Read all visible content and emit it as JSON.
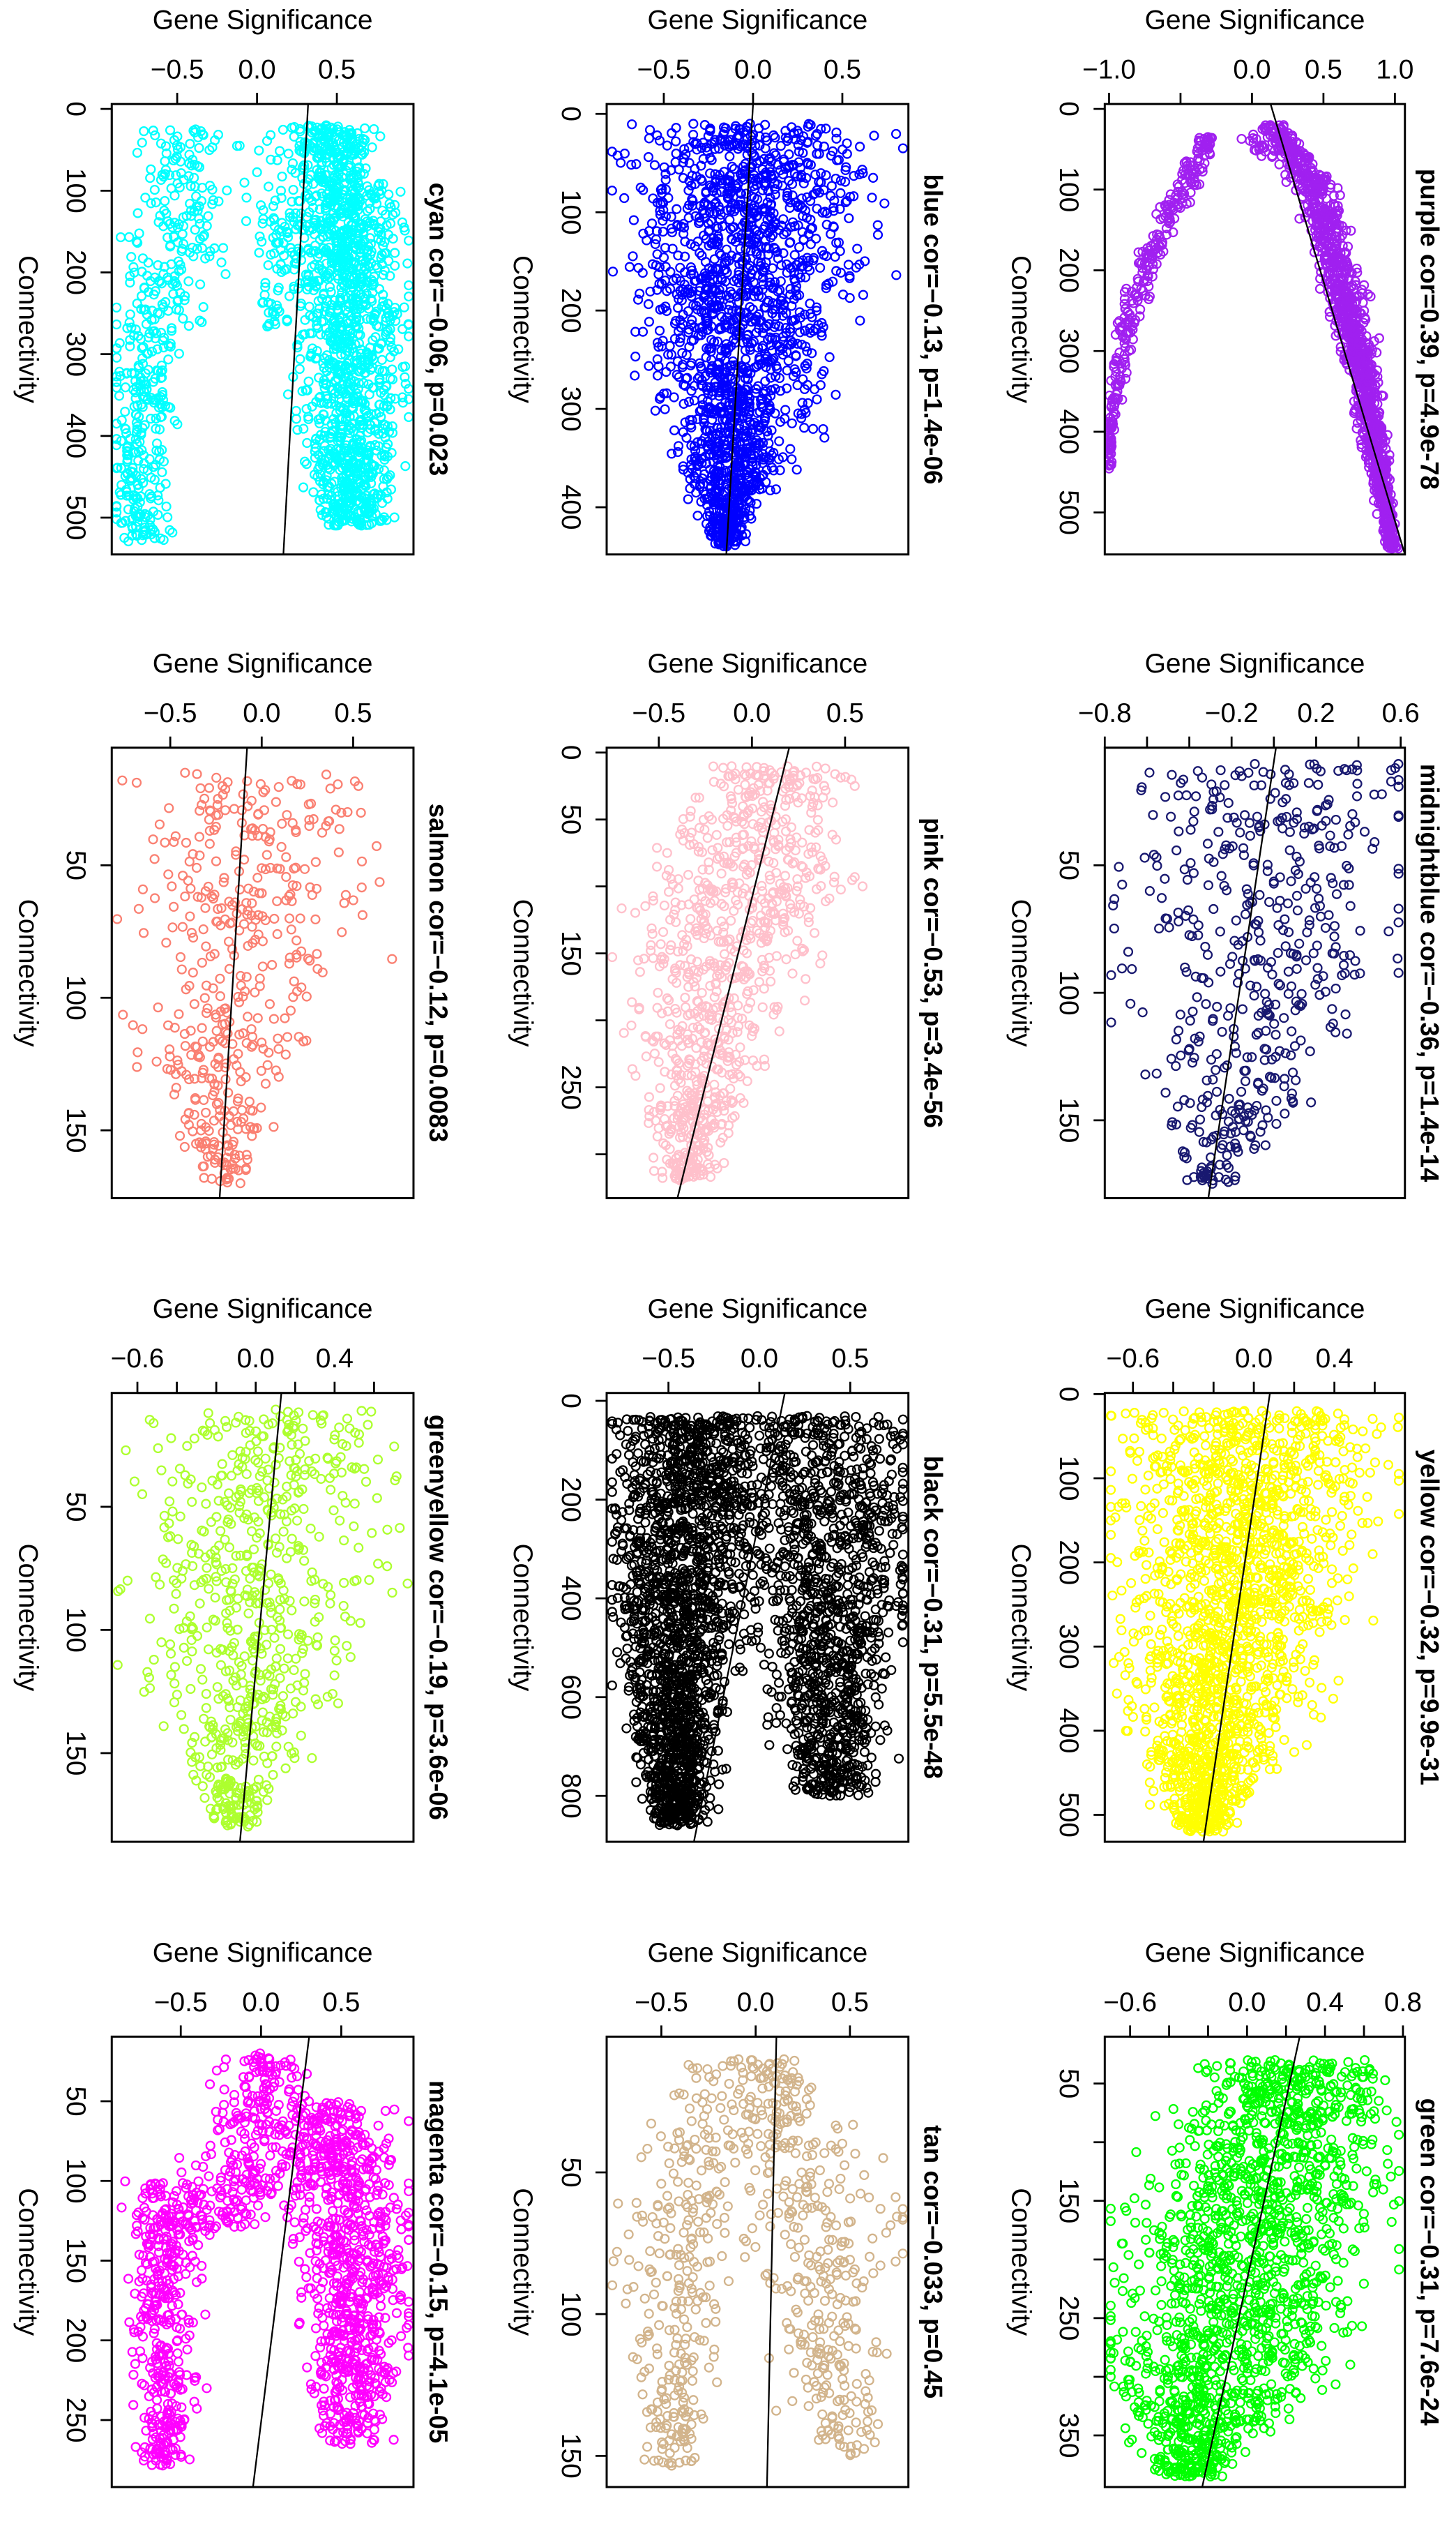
{
  "chart_data": [
    {
      "type": "scatter",
      "module": "cyan",
      "color": "#00FFFF",
      "title": "cyan cor=−0.06, p=0.023",
      "cor": -0.06,
      "p": "0.023",
      "xlabel": "Gene Significance",
      "ylabel": "Connectivity",
      "xlim": [
        -0.91,
        0.98
      ],
      "ylim": [
        -6,
        545
      ],
      "xticks": [
        -0.5,
        0.0,
        0.5
      ],
      "xticklabels": [
        "−0.5",
        "0.0",
        "0.5"
      ],
      "yticks": [
        0,
        100,
        200,
        300,
        400,
        500
      ],
      "yticklabels": [
        "0",
        "100",
        "200",
        "300",
        "400",
        "500"
      ],
      "fit_line": [
        [
          0.32,
          -6
        ],
        [
          0.165,
          545
        ]
      ],
      "clusters": [
        {
          "n": 450,
          "nodes": [
            [
              25,
              -0.45,
              0.12
            ],
            [
              150,
              -0.5,
              0.15
            ],
            [
              300,
              -0.7,
              0.12
            ],
            [
              530,
              -0.72,
              0.08
            ]
          ]
        },
        {
          "n": 80,
          "nodes": [
            [
              30,
              0.05,
              0.12
            ],
            [
              270,
              0.12,
              0.05
            ]
          ]
        },
        {
          "n": 1400,
          "nodes": [
            [
              20,
              0.45,
              0.12
            ],
            [
              150,
              0.55,
              0.17
            ],
            [
              350,
              0.6,
              0.16
            ],
            [
              510,
              0.6,
              0.11
            ]
          ]
        }
      ]
    },
    {
      "type": "scatter",
      "module": "blue",
      "color": "#0000FF",
      "title": "blue cor=−0.13, p=1.4e−06",
      "cor": -0.13,
      "p": "1.4e-06",
      "xlabel": "Gene Significance",
      "ylabel": "Connectivity",
      "xlim": [
        -0.82,
        0.87
      ],
      "ylim": [
        -10,
        448
      ],
      "xticks": [
        -0.5,
        0.0,
        0.5
      ],
      "xticklabels": [
        "−0.5",
        "0.0",
        "0.5"
      ],
      "yticks": [
        0,
        100,
        200,
        300,
        400
      ],
      "yticklabels": [
        "0",
        "100",
        "200",
        "300",
        "400"
      ],
      "fit_line": [
        [
          0.0,
          -10
        ],
        [
          -0.15,
          448
        ]
      ],
      "clusters": [
        {
          "n": 1800,
          "nodes": [
            [
              10,
              0.0,
              0.33
            ],
            [
              200,
              -0.05,
              0.27
            ],
            [
              350,
              -0.12,
              0.15
            ],
            [
              440,
              -0.15,
              0.04
            ]
          ]
        }
      ]
    },
    {
      "type": "scatter",
      "module": "purple",
      "color": "#A020F0",
      "title": "purple cor=0.39, p=4.9e−78",
      "cor": 0.39,
      "p": "4.9e-78",
      "xlabel": "Gene Significance",
      "ylabel": "Connectivity",
      "xlim": [
        -1.03,
        1.07
      ],
      "ylim": [
        -6,
        552
      ],
      "xticks": [
        -1.0,
        -0.5,
        0.0,
        0.5,
        1.0
      ],
      "xticklabels": [
        "−1.0",
        "",
        "0.0",
        "0.5",
        "1.0"
      ],
      "yticks": [
        0,
        100,
        200,
        300,
        400,
        500
      ],
      "yticklabels": [
        "0",
        "100",
        "200",
        "300",
        "400",
        "500"
      ],
      "fit_line": [
        [
          0.13,
          -6
        ],
        [
          1.07,
          552
        ]
      ],
      "clusters": [
        {
          "n": 300,
          "nodes": [
            [
              30,
              -0.3,
              0.04
            ],
            [
              100,
              -0.5,
              0.05
            ],
            [
              250,
              -0.85,
              0.04
            ],
            [
              400,
              -1.0,
              0.02
            ],
            [
              450,
              -1.0,
              0.01
            ]
          ]
        },
        {
          "n": 20,
          "nodes": [
            [
              30,
              0.0,
              0.06
            ],
            [
              60,
              0.1,
              0.04
            ]
          ]
        },
        {
          "n": 1200,
          "nodes": [
            [
              20,
              0.15,
              0.04
            ],
            [
              100,
              0.45,
              0.07
            ],
            [
              300,
              0.75,
              0.06
            ],
            [
              545,
              0.98,
              0.02
            ]
          ]
        }
      ]
    },
    {
      "type": "scatter",
      "module": "salmon",
      "color": "#FA8072",
      "title": "salmon cor=−0.12, p=0.0083",
      "cor": -0.12,
      "p": "0.0083",
      "xlabel": "Gene Significance",
      "ylabel": "Connectivity",
      "xlim": [
        -0.82,
        0.83
      ],
      "ylim": [
        5.6,
        175.6
      ],
      "xticks": [
        -0.5,
        0.0,
        0.5
      ],
      "xticklabels": [
        "−0.5",
        "0.0",
        "0.5"
      ],
      "yticks": [
        50,
        100,
        150
      ],
      "yticklabels": [
        "50",
        "100",
        "150"
      ],
      "fit_line": [
        [
          -0.08,
          5.6
        ],
        [
          -0.23,
          175.6
        ]
      ],
      "clusters": [
        {
          "n": 450,
          "nodes": [
            [
              15,
              -0.05,
              0.3
            ],
            [
              80,
              -0.05,
              0.3
            ],
            [
              120,
              -0.2,
              0.2
            ],
            [
              170,
              -0.2,
              0.06
            ]
          ]
        }
      ]
    },
    {
      "type": "scatter",
      "module": "pink",
      "color": "#FFC0CB",
      "title": "pink cor=−0.53, p=3.4e−56",
      "cor": -0.53,
      "p": "3.4e-56",
      "xlabel": "Gene Significance",
      "ylabel": "Connectivity",
      "xlim": [
        -0.78,
        0.84
      ],
      "ylim": [
        -3.6,
        332.7
      ],
      "xticks": [
        -0.5,
        0.0,
        0.5
      ],
      "xticklabels": [
        "−0.5",
        "0.0",
        "0.5"
      ],
      "yticks": [
        0,
        50,
        100,
        150,
        200,
        250,
        300
      ],
      "yticklabels": [
        "0",
        "50",
        "",
        "150",
        "",
        "250",
        ""
      ],
      "fit_line": [
        [
          0.2,
          -3.6
        ],
        [
          -0.4,
          332.7
        ]
      ],
      "clusters": [
        {
          "n": 900,
          "nodes": [
            [
              10,
              0.1,
              0.2
            ],
            [
              100,
              0.0,
              0.28
            ],
            [
              200,
              -0.25,
              0.2
            ],
            [
              320,
              -0.35,
              0.07
            ]
          ]
        }
      ]
    },
    {
      "type": "scatter",
      "module": "midnightblue",
      "color": "#191970",
      "title": "midnightblue cor=−0.36, p=1.4e−14",
      "cor": -0.36,
      "p": "1.4e-14",
      "xlabel": "Gene Significance",
      "ylabel": "Connectivity",
      "xlim": [
        -0.8,
        0.62
      ],
      "ylim": [
        3.9,
        180.5
      ],
      "xticks": [
        -0.8,
        -0.6,
        -0.4,
        -0.2,
        0.0,
        0.2,
        0.4,
        0.6
      ],
      "xticklabels": [
        "−0.8",
        "",
        "",
        "−0.2",
        "",
        "0.2",
        "",
        "0.6"
      ],
      "yticks": [
        50,
        100,
        150
      ],
      "yticklabels": [
        "50",
        "100",
        "150"
      ],
      "fit_line": [
        [
          0.01,
          3.9
        ],
        [
          -0.31,
          180.5
        ]
      ],
      "clusters": [
        {
          "n": 500,
          "nodes": [
            [
              10,
              0.0,
              0.33
            ],
            [
              80,
              0.0,
              0.33
            ],
            [
              150,
              -0.25,
              0.15
            ],
            [
              175,
              -0.3,
              0.05
            ]
          ]
        }
      ]
    },
    {
      "type": "scatter",
      "module": "greenyellow",
      "color": "#ADFF2F",
      "title": "greenyellow cor=−0.19, p=3.6e−06",
      "cor": -0.19,
      "p": "3.6e-06",
      "xlabel": "Gene Significance",
      "ylabel": "Connectivity",
      "xlim": [
        -0.73,
        0.8
      ],
      "ylim": [
        3.8,
        186
      ],
      "xticks": [
        -0.6,
        -0.4,
        -0.2,
        0.0,
        0.2,
        0.4,
        0.6
      ],
      "xticklabels": [
        "−0.6",
        "",
        "",
        "0.0",
        "",
        "0.4",
        ""
      ],
      "yticks": [
        50,
        100,
        150
      ],
      "yticklabels": [
        "50",
        "100",
        "150"
      ],
      "fit_line": [
        [
          0.13,
          3.8
        ],
        [
          -0.08,
          186
        ]
      ],
      "clusters": [
        {
          "n": 700,
          "nodes": [
            [
              10,
              0.15,
              0.33
            ],
            [
              80,
              0.0,
              0.3
            ],
            [
              140,
              -0.05,
              0.2
            ],
            [
              180,
              -0.1,
              0.05
            ]
          ]
        }
      ]
    },
    {
      "type": "scatter",
      "module": "black",
      "color": "#000000",
      "title": "black cor=−0.31, p=5.5e−48",
      "cor": -0.31,
      "p": "5.5e-48",
      "xlabel": "Gene Significance",
      "ylabel": "Connectivity",
      "xlim": [
        -0.84,
        0.82
      ],
      "ylim": [
        -16,
        893
      ],
      "xticks": [
        -0.5,
        0.0,
        0.5
      ],
      "xticklabels": [
        "−0.5",
        "0.0",
        "0.5"
      ],
      "yticks": [
        0,
        200,
        400,
        600,
        800
      ],
      "yticklabels": [
        "0",
        "200",
        "400",
        "600",
        "800"
      ],
      "fit_line": [
        [
          0.14,
          -16
        ],
        [
          -0.36,
          893
        ]
      ],
      "clusters": [
        {
          "n": 1800,
          "nodes": [
            [
              30,
              -0.35,
              0.2
            ],
            [
              400,
              -0.45,
              0.18
            ],
            [
              860,
              -0.45,
              0.07
            ]
          ]
        },
        {
          "n": 1200,
          "nodes": [
            [
              30,
              0.3,
              0.28
            ],
            [
              400,
              0.4,
              0.22
            ],
            [
              800,
              0.4,
              0.1
            ]
          ]
        }
      ]
    },
    {
      "type": "scatter",
      "module": "yellow",
      "color": "#FFFF00",
      "title": "yellow cor=−0.32, p=9.9e−31",
      "cor": -0.32,
      "p": "9.9e-31",
      "xlabel": "Gene Significance",
      "ylabel": "Connectivity",
      "xlim": [
        -0.74,
        0.75
      ],
      "ylim": [
        -1.4,
        532
      ],
      "xticks": [
        -0.6,
        -0.4,
        -0.2,
        0.0,
        0.2,
        0.4,
        0.6
      ],
      "xticklabels": [
        "−0.6",
        "",
        "",
        "0.0",
        "",
        "0.4",
        ""
      ],
      "yticks": [
        0,
        100,
        200,
        300,
        400,
        500
      ],
      "yticklabels": [
        "0",
        "100",
        "200",
        "300",
        "400",
        "500"
      ],
      "fit_line": [
        [
          0.08,
          -1.4
        ],
        [
          -0.25,
          532
        ]
      ],
      "clusters": [
        {
          "n": 1800,
          "nodes": [
            [
              20,
              0.0,
              0.33
            ],
            [
              200,
              -0.05,
              0.28
            ],
            [
              400,
              -0.2,
              0.18
            ],
            [
              520,
              -0.25,
              0.06
            ]
          ]
        }
      ]
    },
    {
      "type": "scatter",
      "module": "magenta",
      "color": "#FF00FF",
      "title": "magenta cor=−0.15, p=4.1e−05",
      "cor": -0.15,
      "p": "4.1e-05",
      "xlabel": "Gene Significance",
      "ylabel": "Connectivity",
      "xlim": [
        -0.93,
        0.95
      ],
      "ylim": [
        9.5,
        292
      ],
      "xticks": [
        -0.5,
        0.0,
        0.5
      ],
      "xticklabels": [
        "−0.5",
        "0.0",
        "0.5"
      ],
      "yticks": [
        50,
        100,
        150,
        200,
        250
      ],
      "yticklabels": [
        "50",
        "100",
        "150",
        "200",
        "250"
      ],
      "fit_line": [
        [
          0.3,
          9.5
        ],
        [
          -0.05,
          292
        ]
      ],
      "clusters": [
        {
          "n": 400,
          "nodes": [
            [
              100,
              -0.6,
              0.12
            ],
            [
              280,
              -0.6,
              0.08
            ]
          ]
        },
        {
          "n": 300,
          "nodes": [
            [
              20,
              0.0,
              0.12
            ],
            [
              80,
              0.05,
              0.2
            ],
            [
              130,
              -0.3,
              0.15
            ]
          ]
        },
        {
          "n": 800,
          "nodes": [
            [
              50,
              0.45,
              0.15
            ],
            [
              150,
              0.6,
              0.18
            ],
            [
              265,
              0.55,
              0.12
            ]
          ]
        }
      ]
    },
    {
      "type": "scatter",
      "module": "tan",
      "color": "#D2B48C",
      "title": "tan cor=−0.033, p=0.45",
      "cor": -0.033,
      "p": "0.45",
      "xlabel": "Gene Significance",
      "ylabel": "Connectivity",
      "xlim": [
        -0.79,
        0.81
      ],
      "ylim": [
        2.1,
        161
      ],
      "xticks": [
        -0.5,
        0.0,
        0.5
      ],
      "xticklabels": [
        "−0.5",
        "0.0",
        "0.5"
      ],
      "yticks": [
        50,
        100,
        150
      ],
      "yticklabels": [
        "50",
        "100",
        "150"
      ],
      "fit_line": [
        [
          0.11,
          2.1
        ],
        [
          0.06,
          161
        ]
      ],
      "clusters": [
        {
          "n": 350,
          "nodes": [
            [
              10,
              -0.1,
              0.2
            ],
            [
              80,
              -0.4,
              0.15
            ],
            [
              155,
              -0.45,
              0.08
            ]
          ]
        },
        {
          "n": 350,
          "nodes": [
            [
              10,
              0.05,
              0.1
            ],
            [
              60,
              0.35,
              0.2
            ],
            [
              150,
              0.45,
              0.12
            ]
          ]
        }
      ]
    },
    {
      "type": "scatter",
      "module": "green",
      "color": "#00FF00",
      "title": "green cor=−0.31, p=7.6e−24",
      "cor": -0.31,
      "p": "7.6e-24",
      "xlabel": "Gene Significance",
      "ylabel": "Connectivity",
      "xlim": [
        -0.73,
        0.81
      ],
      "ylim": [
        10,
        394
      ],
      "xticks": [
        -0.6,
        -0.4,
        -0.2,
        0.0,
        0.2,
        0.4,
        0.6,
        0.8
      ],
      "xticklabels": [
        "−0.6",
        "",
        "",
        "0.0",
        "",
        "0.4",
        "",
        "0.8"
      ],
      "yticks": [
        50,
        100,
        150,
        200,
        250,
        300,
        350
      ],
      "yticklabels": [
        "50",
        "",
        "150",
        "",
        "250",
        "",
        "350"
      ],
      "fit_line": [
        [
          0.27,
          10
        ],
        [
          -0.23,
          394
        ]
      ],
      "clusters": [
        {
          "n": 1600,
          "nodes": [
            [
              30,
              0.25,
              0.2
            ],
            [
              150,
              0.1,
              0.33
            ],
            [
              300,
              -0.15,
              0.28
            ],
            [
              385,
              -0.3,
              0.08
            ]
          ]
        }
      ]
    }
  ]
}
